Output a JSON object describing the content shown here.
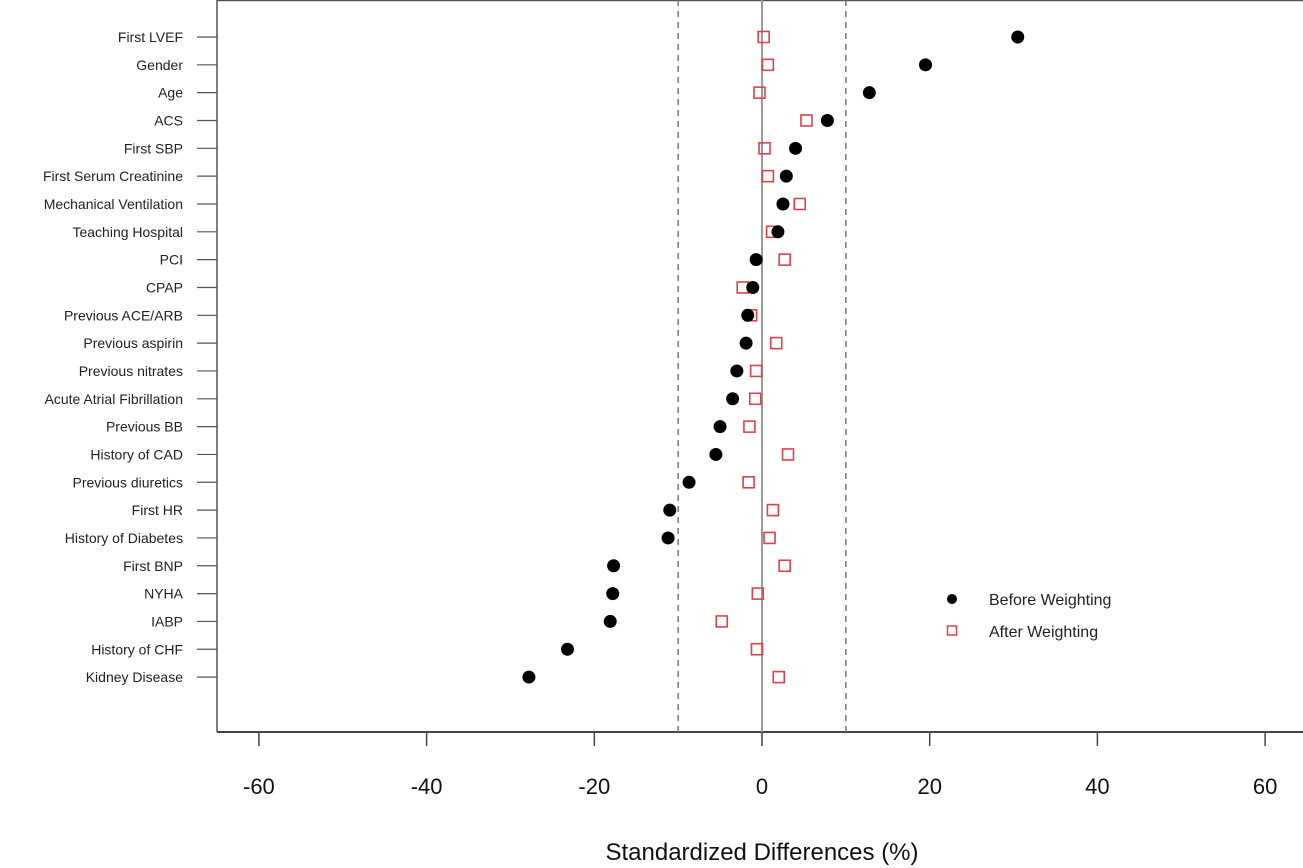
{
  "chart_data": {
    "type": "scatter",
    "orientation": "horizontal-dot-plot",
    "xlabel": "Standardized Differences (%)",
    "ylabel": "",
    "title": "",
    "xlim": [
      -65,
      62
    ],
    "xticks": [
      -60,
      -40,
      -20,
      0,
      20,
      40,
      60
    ],
    "reference_lines": {
      "solid": [
        0
      ],
      "dashed": [
        -10,
        10
      ]
    },
    "categories": [
      "First LVEF",
      "Gender",
      "Age",
      "ACS",
      "First SBP",
      "First Serum Creatinine",
      "Mechanical Ventilation",
      "Teaching Hospital",
      "PCI",
      "CPAP",
      "Previous ACE/ARB",
      "Previous aspirin",
      "Previous nitrates",
      "Acute Atrial Fibrillation",
      "Previous BB",
      "History of CAD",
      "Previous diuretics",
      "First HR",
      "History of Diabetes",
      "First BNP",
      "NYHA",
      "IABP",
      "History of CHF",
      "Kidney Disease"
    ],
    "series": [
      {
        "name": "Before Weighting",
        "marker": "filled-circle",
        "color": "#000000",
        "values": [
          30.5,
          19.5,
          12.8,
          7.8,
          4.0,
          2.9,
          2.5,
          1.9,
          -0.7,
          -1.1,
          -1.7,
          -1.9,
          -3.0,
          -3.5,
          -5.0,
          -5.5,
          -8.7,
          -11.0,
          -11.2,
          -17.7,
          -17.8,
          -18.1,
          -23.2,
          -27.8
        ]
      },
      {
        "name": "After Weighting",
        "marker": "open-square",
        "color": "#e0404a",
        "values": [
          0.2,
          0.7,
          -0.3,
          5.3,
          0.3,
          0.7,
          4.5,
          1.2,
          2.7,
          -2.3,
          -1.3,
          1.7,
          -0.7,
          -0.8,
          -1.5,
          3.1,
          -1.6,
          1.3,
          0.9,
          2.7,
          -0.5,
          -4.8,
          -0.6,
          2.0
        ]
      }
    ],
    "legend": {
      "position": "bottom-right",
      "entries": [
        "Before Weighting",
        "After Weighting"
      ]
    },
    "grid": false
  }
}
